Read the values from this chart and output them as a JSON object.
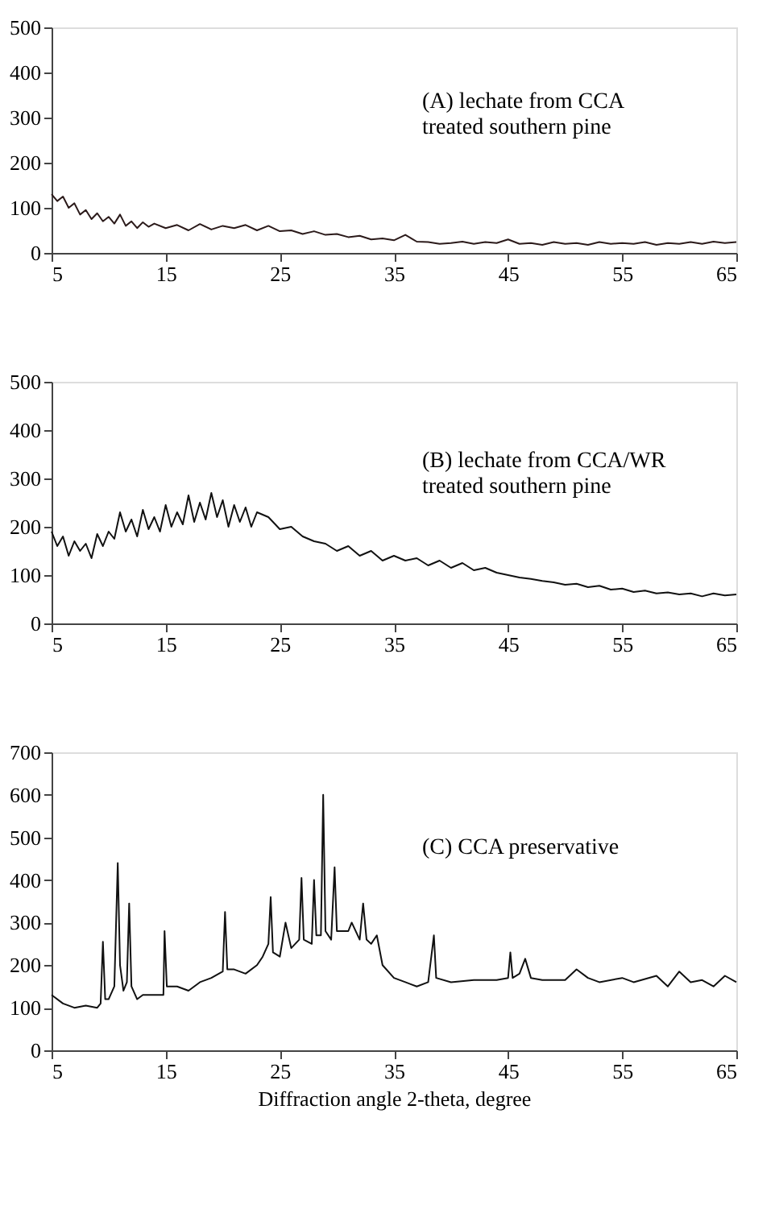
{
  "chart_data": [
    {
      "type": "line",
      "annotations": [
        "(A) lechate from CCA\ntreated southern pine"
      ],
      "xlim": [
        5,
        65
      ],
      "ylim": [
        0,
        500
      ],
      "xticks": [
        5,
        15,
        25,
        35,
        45,
        55,
        65
      ],
      "yticks": [
        0,
        100,
        200,
        300,
        400,
        500
      ],
      "grid": false,
      "marker": "none",
      "series": [
        {
          "color": "#2b1a1a",
          "x": [
            5,
            5.5,
            6,
            6.5,
            7,
            7.5,
            8,
            8.5,
            9,
            9.5,
            10,
            10.5,
            11,
            11.5,
            12,
            12.5,
            13,
            13.5,
            14,
            15,
            16,
            17,
            18,
            19,
            20,
            21,
            22,
            23,
            24,
            25,
            26,
            27,
            28,
            29,
            30,
            31,
            32,
            33,
            34,
            35,
            36,
            37,
            38,
            39,
            40,
            41,
            42,
            43,
            44,
            45,
            46,
            47,
            48,
            49,
            50,
            51,
            52,
            53,
            54,
            55,
            56,
            57,
            58,
            59,
            60,
            61,
            62,
            63,
            64,
            65
          ],
          "values": [
            130,
            115,
            125,
            100,
            110,
            85,
            95,
            75,
            88,
            70,
            80,
            65,
            85,
            60,
            70,
            55,
            68,
            58,
            65,
            55,
            62,
            50,
            64,
            52,
            60,
            55,
            62,
            50,
            60,
            48,
            50,
            42,
            48,
            40,
            42,
            35,
            38,
            30,
            32,
            28,
            40,
            25,
            24,
            20,
            22,
            25,
            20,
            24,
            22,
            30,
            20,
            22,
            18,
            24,
            20,
            22,
            18,
            24,
            20,
            22,
            20,
            24,
            18,
            22,
            20,
            24,
            20,
            25,
            22,
            24
          ]
        }
      ]
    },
    {
      "type": "line",
      "annotations": [
        "(B) lechate from CCA/WR\ntreated southern pine"
      ],
      "xlim": [
        5,
        65
      ],
      "ylim": [
        0,
        500
      ],
      "xticks": [
        5,
        15,
        25,
        35,
        45,
        55,
        65
      ],
      "yticks": [
        0,
        100,
        200,
        300,
        400,
        500
      ],
      "grid": false,
      "marker": "none",
      "series": [
        {
          "color": "#111111",
          "x": [
            5,
            5.5,
            6,
            6.5,
            7,
            7.5,
            8,
            8.5,
            9,
            9.5,
            10,
            10.5,
            11,
            11.5,
            12,
            12.5,
            13,
            13.5,
            14,
            14.5,
            15,
            15.5,
            16,
            16.5,
            17,
            17.5,
            18,
            18.5,
            19,
            19.5,
            20,
            20.5,
            21,
            21.5,
            22,
            22.5,
            23,
            24,
            25,
            26,
            27,
            28,
            29,
            30,
            31,
            32,
            33,
            34,
            35,
            36,
            37,
            38,
            39,
            40,
            41,
            42,
            43,
            44,
            45,
            46,
            47,
            48,
            49,
            50,
            51,
            52,
            53,
            54,
            55,
            56,
            57,
            58,
            59,
            60,
            61,
            62,
            63,
            64,
            65
          ],
          "values": [
            190,
            160,
            180,
            140,
            170,
            150,
            165,
            135,
            185,
            160,
            190,
            175,
            230,
            190,
            215,
            180,
            235,
            195,
            220,
            190,
            245,
            200,
            230,
            205,
            265,
            210,
            250,
            215,
            270,
            220,
            255,
            200,
            245,
            210,
            240,
            200,
            230,
            220,
            195,
            200,
            180,
            170,
            165,
            150,
            160,
            140,
            150,
            130,
            140,
            130,
            135,
            120,
            130,
            115,
            125,
            110,
            115,
            105,
            100,
            95,
            92,
            88,
            85,
            80,
            82,
            75,
            78,
            70,
            72,
            65,
            68,
            62,
            64,
            60,
            62,
            56,
            62,
            58,
            60
          ]
        }
      ]
    },
    {
      "type": "line",
      "annotations": [
        "(C) CCA preservative"
      ],
      "xlabel": "Diffraction angle 2-theta, degree",
      "xlim": [
        5,
        65
      ],
      "ylim": [
        0,
        700
      ],
      "xticks": [
        5,
        15,
        25,
        35,
        45,
        55,
        65
      ],
      "yticks": [
        0,
        100,
        200,
        300,
        400,
        500,
        600,
        700
      ],
      "grid": false,
      "marker": "none",
      "series": [
        {
          "color": "#111111",
          "x": [
            5,
            6,
            7,
            8,
            9,
            9.3,
            9.5,
            9.7,
            10,
            10.5,
            10.8,
            11,
            11.3,
            11.6,
            11.8,
            12,
            12.5,
            13,
            14,
            14.8,
            14.9,
            15.1,
            16,
            17,
            18,
            19,
            20,
            20.2,
            20.4,
            21,
            22,
            23,
            23.5,
            24,
            24.2,
            24.4,
            25,
            25.5,
            26,
            26.7,
            26.9,
            27.1,
            27.8,
            28,
            28.2,
            28.6,
            28.8,
            29,
            29.5,
            29.8,
            30,
            31,
            31.3,
            32,
            32.3,
            32.6,
            33,
            33.5,
            34,
            35,
            36,
            37,
            38,
            38.5,
            38.7,
            40,
            42,
            44,
            45,
            45.2,
            45.4,
            46,
            46.5,
            47,
            48,
            50,
            51,
            52,
            53,
            55,
            56,
            58,
            59,
            60,
            61,
            62,
            63,
            64,
            65
          ],
          "values": [
            130,
            110,
            100,
            105,
            100,
            110,
            255,
            120,
            120,
            150,
            440,
            200,
            140,
            160,
            345,
            150,
            120,
            130,
            130,
            130,
            280,
            150,
            150,
            140,
            160,
            170,
            185,
            325,
            190,
            190,
            180,
            200,
            220,
            250,
            360,
            230,
            220,
            300,
            240,
            260,
            405,
            260,
            250,
            400,
            270,
            270,
            600,
            280,
            260,
            430,
            280,
            280,
            300,
            260,
            345,
            260,
            250,
            270,
            200,
            170,
            160,
            150,
            160,
            270,
            170,
            160,
            165,
            165,
            170,
            230,
            170,
            180,
            215,
            170,
            165,
            165,
            190,
            170,
            160,
            170,
            160,
            175,
            150,
            185,
            160,
            165,
            150,
            175,
            160
          ]
        }
      ]
    }
  ]
}
